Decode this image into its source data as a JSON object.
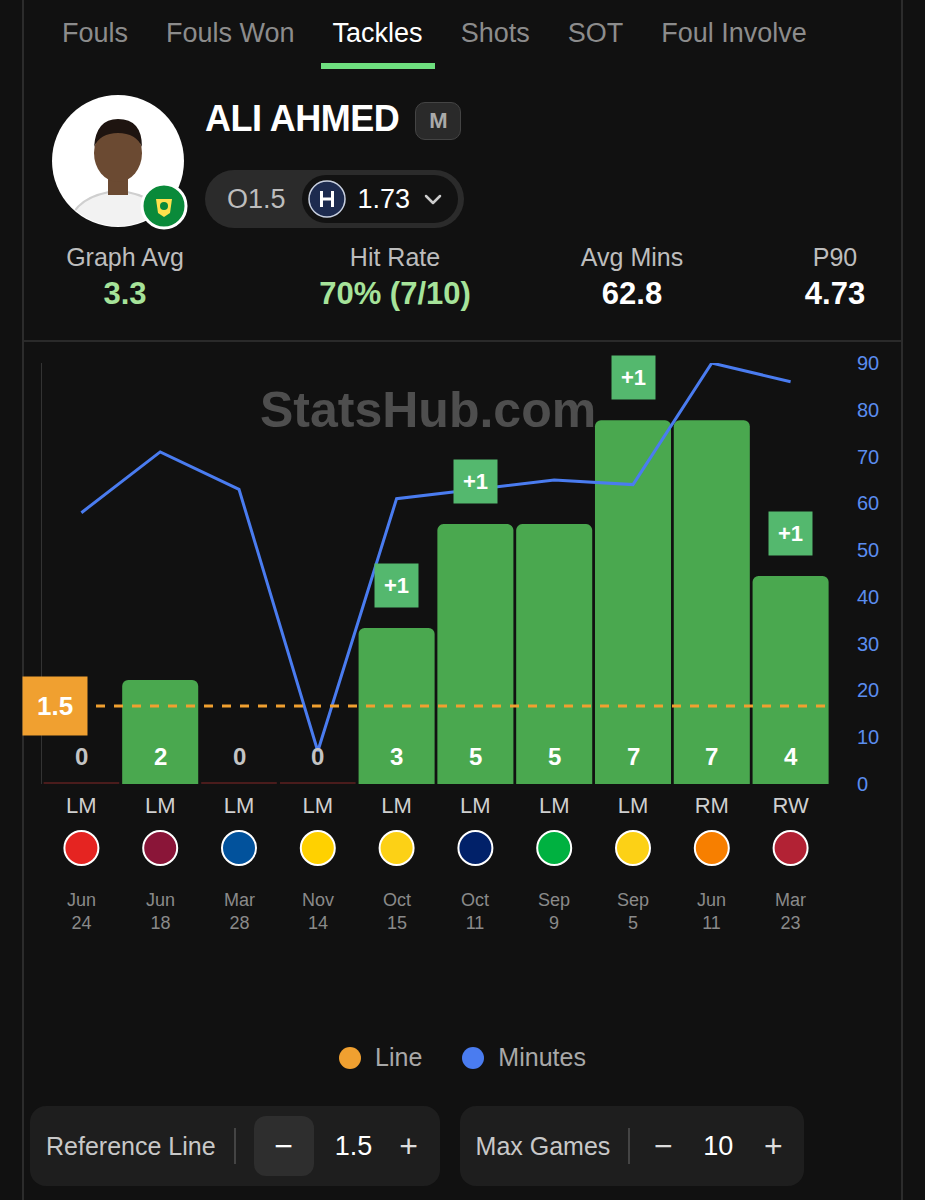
{
  "header": {
    "tabs": [
      "Fouls",
      "Fouls Won",
      "Tackles",
      "Shots",
      "SOT",
      "Foul Involve"
    ],
    "active_tab": "Tackles"
  },
  "player": {
    "name": "ALI AHMED",
    "position": "M",
    "line": "O1.5",
    "odds": "1.73"
  },
  "stats": [
    {
      "label": "Graph Avg",
      "value": "3.3",
      "highlight": true
    },
    {
      "label": "Hit Rate",
      "value": "70% (7/10)",
      "highlight": true
    },
    {
      "label": "Avg Mins",
      "value": "62.8",
      "highlight": false
    },
    {
      "label": "P90",
      "value": "4.73",
      "highlight": false
    }
  ],
  "watermark": "StatsHub.com",
  "chart_data": {
    "type": "bar",
    "categories": [
      "LM",
      "LM",
      "LM",
      "LM",
      "LM",
      "LM",
      "LM",
      "LM",
      "RM",
      "RW"
    ],
    "dates": [
      "Jun 24",
      "Jun 18",
      "Mar 28",
      "Nov 14",
      "Oct 15",
      "Oct 11",
      "Sep 9",
      "Sep 5",
      "Jun 11",
      "Mar 23"
    ],
    "values": [
      0,
      2,
      0,
      0,
      3,
      5,
      5,
      7,
      7,
      4
    ],
    "color": "#4aa84f",
    "data_labels": true,
    "ylim": [
      0,
      8.1
    ],
    "yticks": [],
    "series": [
      {
        "name": "Minutes",
        "type": "line",
        "color": "#4a7cf0",
        "axis": "y2",
        "values": [
          58,
          71,
          63,
          7,
          61,
          63,
          65,
          64,
          90,
          86
        ]
      }
    ],
    "y2lim": [
      0,
      90
    ],
    "y2ticks": [
      0,
      10,
      20,
      30,
      40,
      50,
      60,
      70,
      80,
      90
    ],
    "reference_line": {
      "name": "Line",
      "value": 1.5,
      "color": "#f0a030",
      "line_style": "dashed"
    },
    "annotations": [
      {
        "x": 4,
        "text": "+1"
      },
      {
        "x": 5,
        "text": "+1"
      },
      {
        "x": 7,
        "text": "+1"
      },
      {
        "x": 9,
        "text": "+1"
      }
    ],
    "legend": "bottom",
    "grid": false
  },
  "controls": {
    "minus": "−",
    "plus": "+",
    "items": [
      {
        "label": "Reference Line",
        "value": "1.5",
        "button": true
      },
      {
        "label": "Max Games",
        "value": "10",
        "button": false
      }
    ]
  }
}
